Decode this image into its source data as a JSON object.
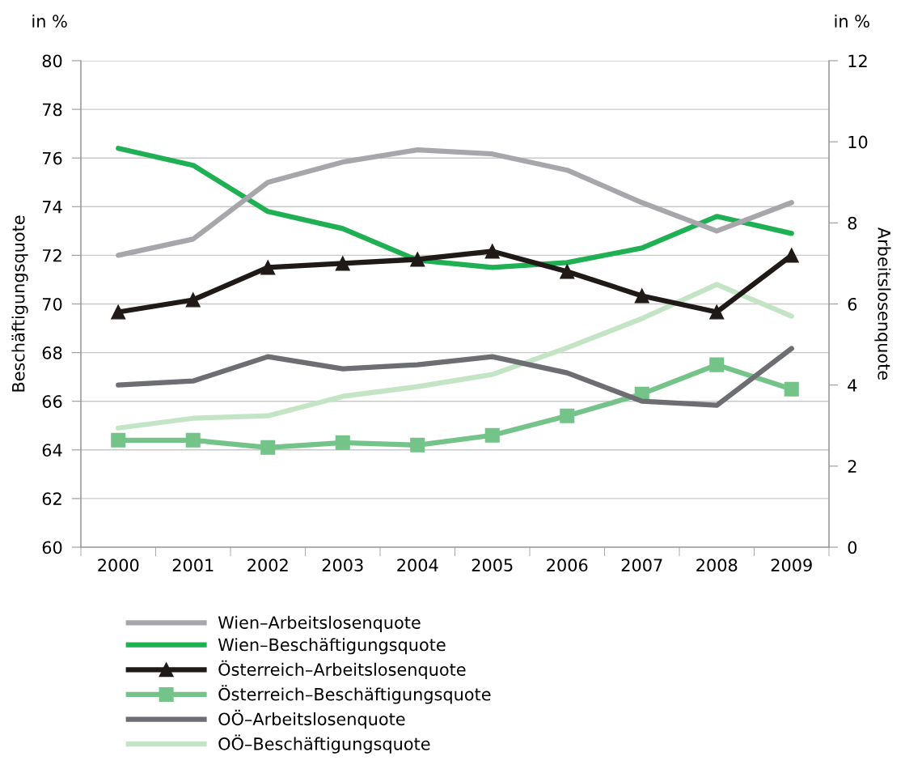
{
  "chart_data": {
    "type": "line",
    "categories": [
      "2000",
      "2001",
      "2002",
      "2003",
      "2004",
      "2005",
      "2006",
      "2007",
      "2008",
      "2009"
    ],
    "ylabel": "Beschäftigungsquote",
    "y2label": "Arbeitslosenquote",
    "ylim": [
      60,
      80
    ],
    "yticks": [
      60,
      62,
      64,
      66,
      68,
      70,
      72,
      74,
      76,
      78,
      80
    ],
    "y2lim": [
      0,
      12
    ],
    "y2ticks": [
      0,
      2,
      4,
      6,
      8,
      10,
      12
    ],
    "annotations": [
      "in %",
      "in %"
    ],
    "grid": "y",
    "legend": "bottom",
    "series": [
      {
        "name": "Wien–Arbeitslosenquote",
        "color": "#a7a7ab",
        "axis": "y2",
        "marker": "none",
        "values": [
          7.2,
          7.6,
          9.0,
          9.5,
          9.8,
          9.7,
          9.3,
          8.5,
          7.8,
          8.5
        ]
      },
      {
        "name": "Wien–Beschäftigungsquote",
        "color": "#1eb053",
        "marker": "none",
        "values": [
          76.4,
          75.7,
          73.8,
          73.1,
          71.8,
          71.5,
          71.7,
          72.3,
          73.6,
          72.9
        ]
      },
      {
        "name": "Österreich–Arbeitslosenquote",
        "color": "#1f1a17",
        "axis": "y2",
        "marker": "triangle",
        "values": [
          5.8,
          6.1,
          6.9,
          7.0,
          7.1,
          7.3,
          6.8,
          6.2,
          5.8,
          7.2
        ]
      },
      {
        "name": "Österreich–Beschäftigungsquote",
        "color": "#74c48a",
        "marker": "square",
        "values": [
          64.4,
          64.4,
          64.1,
          64.3,
          64.2,
          64.6,
          65.4,
          66.3,
          67.5,
          66.5
        ]
      },
      {
        "name": "OÖ–Arbeitslosenquote",
        "color": "#6d6e72",
        "axis": "y2",
        "marker": "none",
        "values": [
          4.0,
          4.1,
          4.7,
          4.4,
          4.5,
          4.7,
          4.3,
          3.6,
          3.5,
          4.9
        ]
      },
      {
        "name": "OÖ–Beschäftigungsquote",
        "color": "#c4e4c6",
        "marker": "none",
        "values": [
          64.9,
          65.3,
          65.4,
          66.2,
          66.6,
          67.1,
          68.2,
          69.4,
          70.8,
          69.5
        ]
      }
    ]
  }
}
